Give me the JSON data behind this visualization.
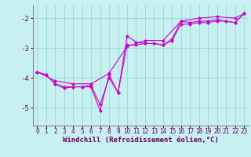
{
  "xlabel": "Windchill (Refroidissement éolien,°C)",
  "bg_color": "#c8f0f0",
  "line_color": "#cc00cc",
  "grid_color": "#99dddd",
  "xlim": [
    -0.5,
    23.5
  ],
  "ylim": [
    -5.6,
    -1.55
  ],
  "yticks": [
    -5,
    -4,
    -3,
    -2
  ],
  "xticks": [
    0,
    1,
    2,
    3,
    4,
    5,
    6,
    7,
    8,
    9,
    10,
    11,
    12,
    13,
    14,
    15,
    16,
    17,
    18,
    19,
    20,
    21,
    22,
    23
  ],
  "line1_x": [
    0,
    1,
    2,
    3,
    4,
    5,
    6,
    7,
    8,
    9,
    10,
    11,
    12,
    13,
    14,
    15,
    16,
    17,
    18,
    19,
    20,
    21,
    22,
    23
  ],
  "line1_y": [
    -3.8,
    -3.9,
    -4.2,
    -4.3,
    -4.3,
    -4.3,
    -4.25,
    -4.9,
    -4.0,
    -4.5,
    -2.6,
    -2.8,
    -2.85,
    -2.85,
    -2.9,
    -2.7,
    -2.1,
    -2.15,
    -2.1,
    -2.1,
    -2.05,
    -2.1,
    -2.15,
    -1.85
  ],
  "line2_x": [
    0,
    1,
    2,
    3,
    4,
    5,
    6,
    7,
    8,
    9,
    10,
    11,
    12,
    13,
    14,
    15,
    16,
    17,
    18,
    19,
    20,
    21,
    22,
    23
  ],
  "line2_y": [
    -3.8,
    -3.9,
    -4.2,
    -4.35,
    -4.3,
    -4.3,
    -4.3,
    -5.1,
    -3.9,
    -4.5,
    -2.9,
    -2.9,
    -2.85,
    -2.85,
    -2.9,
    -2.75,
    -2.2,
    -2.2,
    -2.15,
    -2.15,
    -2.1,
    -2.1,
    -2.15,
    -1.85
  ],
  "line3_x": [
    0,
    2,
    4,
    6,
    8,
    10,
    12,
    14,
    16,
    18,
    20,
    22,
    23
  ],
  "line3_y": [
    -3.8,
    -4.1,
    -4.2,
    -4.2,
    -3.85,
    -2.95,
    -2.75,
    -2.75,
    -2.1,
    -2.0,
    -1.95,
    -2.0,
    -1.85
  ],
  "markersize": 2.5,
  "linewidth": 0.8,
  "tick_fontsize": 5.5,
  "label_fontsize": 6.5
}
